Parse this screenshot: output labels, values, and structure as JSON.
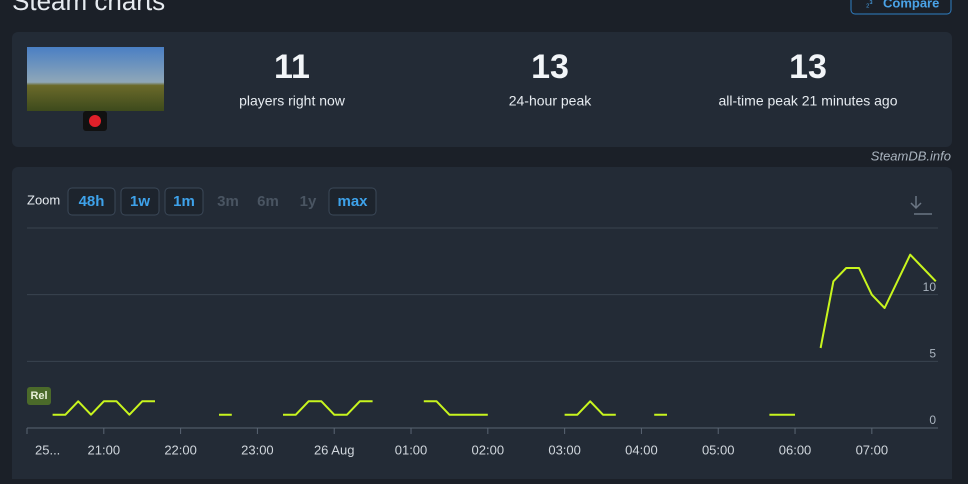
{
  "header": {
    "title": "Steam charts",
    "compare": "Compare"
  },
  "stats": [
    {
      "value": "11",
      "label": "players right now"
    },
    {
      "value": "13",
      "label": "24-hour peak"
    },
    {
      "value": "13",
      "label": "all-time peak 21 minutes ago"
    }
  ],
  "source": "SteamDB.info",
  "zoom": {
    "label": "Zoom",
    "buttons": [
      {
        "text": "48h",
        "enabled": true
      },
      {
        "text": "1w",
        "enabled": true
      },
      {
        "text": "1m",
        "enabled": true
      },
      {
        "text": "3m",
        "enabled": false
      },
      {
        "text": "6m",
        "enabled": false
      },
      {
        "text": "1y",
        "enabled": false
      },
      {
        "text": "max",
        "enabled": true
      }
    ]
  },
  "chart_data": {
    "type": "line",
    "color": "#c8f51e",
    "grid": true,
    "annotation": "Rel",
    "x": [
      20,
      30,
      40,
      50,
      60,
      70,
      80,
      90,
      100,
      null,
      150,
      160,
      null,
      200,
      210,
      220,
      230,
      240,
      250,
      260,
      270,
      null,
      310,
      320,
      330,
      340,
      350,
      360,
      null,
      420,
      430,
      440,
      450,
      460,
      null,
      490,
      500,
      null,
      580,
      590,
      600,
      null,
      620,
      630,
      640,
      650,
      660,
      670,
      680,
      690,
      700,
      710
    ],
    "values": [
      1,
      1,
      2,
      1,
      2,
      2,
      1,
      2,
      2,
      null,
      1,
      1,
      null,
      1,
      1,
      2,
      2,
      1,
      1,
      2,
      2,
      null,
      2,
      2,
      1,
      1,
      1,
      1,
      null,
      1,
      1,
      2,
      1,
      1,
      null,
      1,
      1,
      null,
      1,
      1,
      1,
      null,
      6,
      11,
      12,
      12,
      10,
      9,
      11,
      13,
      12,
      11
    ],
    "xlim": [
      0,
      712
    ],
    "xticks": [
      {
        "value": 0,
        "label": "25..."
      },
      {
        "value": 60,
        "label": "21:00"
      },
      {
        "value": 120,
        "label": "22:00"
      },
      {
        "value": 180,
        "label": "23:00"
      },
      {
        "value": 240,
        "label": "26 Aug"
      },
      {
        "value": 300,
        "label": "01:00"
      },
      {
        "value": 360,
        "label": "02:00"
      },
      {
        "value": 420,
        "label": "03:00"
      },
      {
        "value": 480,
        "label": "04:00"
      },
      {
        "value": 540,
        "label": "05:00"
      },
      {
        "value": 600,
        "label": "06:00"
      },
      {
        "value": 660,
        "label": "07:00"
      }
    ],
    "ylim": [
      0,
      15
    ],
    "yticks": [
      0,
      5,
      10
    ]
  }
}
